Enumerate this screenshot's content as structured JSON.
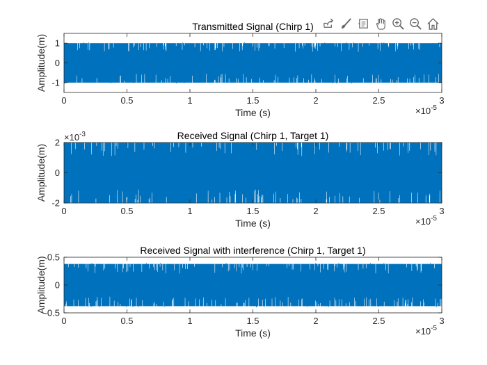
{
  "toolbar": {
    "icons": [
      "export-icon",
      "brush-icon",
      "data-tips-icon",
      "pan-icon",
      "zoom-in-icon",
      "zoom-out-icon",
      "home-icon"
    ]
  },
  "chart_data": [
    {
      "type": "line",
      "title": "Transmitted Signal (Chirp 1)",
      "xlabel": "Time (s)",
      "ylabel": "Amplitude(m)",
      "xlim": [
        0,
        3
      ],
      "ylim": [
        -1.5,
        1.5
      ],
      "x_ticks": [
        "0",
        "0.5",
        "1",
        "1.5",
        "2",
        "2.5",
        "3"
      ],
      "y_ticks": [
        "-1",
        "0",
        "1"
      ],
      "x_exponent": "-5",
      "y_exponent": "",
      "amplitude": 1,
      "color": "#0072BD",
      "series": [
        {
          "x_range": [
            0,
            3
          ],
          "envelope": [
            -1,
            1
          ]
        }
      ]
    },
    {
      "type": "line",
      "title": "Received Signal (Chirp 1, Target 1)",
      "xlabel": "Time (s)",
      "ylabel": "Amplitude(m)",
      "xlim": [
        0,
        3
      ],
      "ylim": [
        -2,
        2
      ],
      "x_ticks": [
        "0",
        "0.5",
        "1",
        "1.5",
        "2",
        "2.5",
        "3"
      ],
      "y_ticks": [
        "-2",
        "0",
        "2"
      ],
      "x_exponent": "-5",
      "y_exponent": "-3",
      "amplitude": 2,
      "color": "#0072BD",
      "series": [
        {
          "x_range": [
            0,
            3
          ],
          "envelope": [
            -2,
            2
          ]
        }
      ]
    },
    {
      "type": "line",
      "title": "Received Signal with interference (Chirp 1, Target 1)",
      "xlabel": "Time (s)",
      "ylabel": "Amplitude(m)",
      "xlim": [
        0,
        3
      ],
      "ylim": [
        -0.5,
        0.5
      ],
      "x_ticks": [
        "0",
        "0.5",
        "1",
        "1.5",
        "2",
        "2.5",
        "3"
      ],
      "y_ticks": [
        "-0.5",
        "0",
        "0.5"
      ],
      "x_exponent": "-5",
      "y_exponent": "",
      "amplitude": 0.38,
      "color": "#0072BD",
      "series": [
        {
          "x_range": [
            0,
            3
          ],
          "envelope": [
            -0.38,
            0.38
          ]
        }
      ]
    }
  ]
}
